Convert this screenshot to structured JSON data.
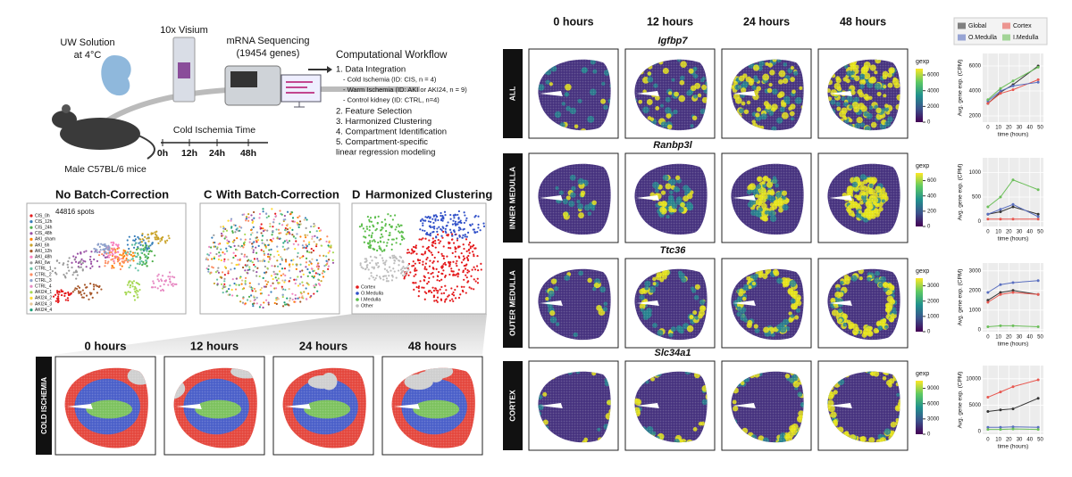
{
  "workflow": {
    "uw": [
      "UW Solution",
      "at 4°C"
    ],
    "visium": "10x Visium",
    "seq": [
      "mRNA Sequencing",
      "(19454 genes)"
    ],
    "timeline_title": "Cold Ischemia Time",
    "times": [
      "0h",
      "12h",
      "24h",
      "48h"
    ],
    "mice": "Male C57BL/6 mice",
    "comp_title": "Computational Workflow",
    "steps": [
      "1. Data Integration",
      "- Cold Ischemia (ID: CIS, n = 4)",
      "- Warm Ischemia (ID: AKI or AKI24, n = 9)",
      "- Control kidney (ID: CTRL, n=4)",
      "2. Feature Selection",
      "3. Harmonized Clustering",
      "4. Compartment Identification",
      "5. Compartment-specific",
      "linear regression modeling"
    ]
  },
  "panels": {
    "b": {
      "title": "No Batch-Correction",
      "spots": "44816 spots",
      "legend": [
        "CIS_0h",
        "CIS_12h",
        "CIS_24h",
        "CIS_48h",
        "AKI_sham",
        "AKI_6h",
        "AKI_12h",
        "AKI_48h",
        "AKI_6w",
        "CTRL_1",
        "CTRL_2",
        "CTRL_3",
        "CTRL_4",
        "AKI24_1",
        "AKI24_2",
        "AKI24_3",
        "AKI24_4"
      ]
    },
    "c": {
      "letter": "C",
      "title": "With Batch-Correction"
    },
    "d": {
      "letter": "D",
      "title": "Harmonized Clustering",
      "legend": [
        "Cortex",
        "O.Medulla",
        "I.Medulla",
        "Other"
      ]
    }
  },
  "cold_ischemia": {
    "row_label": "COLD ISCHEMIA",
    "hours": [
      "0 hours",
      "12 hours",
      "24 hours",
      "48 hours"
    ]
  },
  "spatial": {
    "hours": [
      "0 hours",
      "12 hours",
      "24 hours",
      "48 hours"
    ],
    "rows": [
      {
        "label": "ALL",
        "gene": "Igfbp7",
        "scale_title": "gexp",
        "scale_lim": [
          0,
          6800
        ],
        "scale_ticks": [
          0,
          2000,
          4000,
          6000
        ]
      },
      {
        "label": "INNER MEDULLA",
        "gene": "Ranbp3l",
        "scale_title": "gexp",
        "scale_lim": [
          0,
          700
        ],
        "scale_ticks": [
          0,
          200,
          400,
          600
        ]
      },
      {
        "label": "OUTER MEDULLA",
        "gene": "Ttc36",
        "scale_title": "gexp",
        "scale_lim": [
          0,
          3500
        ],
        "scale_ticks": [
          0,
          1000,
          2000,
          3000
        ]
      },
      {
        "label": "CORTEX",
        "gene": "Slc34a1",
        "scale_title": "gexp",
        "scale_lim": [
          0,
          10500
        ],
        "scale_ticks": [
          0,
          3000,
          6000,
          9000
        ]
      }
    ]
  },
  "chart_data": [
    {
      "type": "line",
      "ylabel": "Avg. gene exp. (CPM)",
      "xlabel": "time (hours)",
      "x": [
        0,
        12,
        24,
        48
      ],
      "xlim": [
        -5,
        53
      ],
      "xticks": [
        0,
        10,
        20,
        30,
        40,
        50
      ],
      "ylim": [
        1500,
        7000
      ],
      "yticks": [
        2000,
        4000,
        6000
      ],
      "series": [
        {
          "name": "Global",
          "color": "#333333",
          "values": [
            3000,
            3900,
            4500,
            6000
          ]
        },
        {
          "name": "Cortex",
          "color": "#e8574f",
          "values": [
            3000,
            3800,
            4100,
            4900
          ]
        },
        {
          "name": "O.Medulla",
          "color": "#5a6fc0",
          "values": [
            3200,
            4000,
            4400,
            4700
          ]
        },
        {
          "name": "I.Medulla",
          "color": "#6cbf5a",
          "values": [
            3300,
            4200,
            4800,
            5900
          ]
        }
      ]
    },
    {
      "type": "line",
      "ylabel": "Avg. gene exp. (CPM)",
      "xlabel": "time (hours)",
      "x": [
        0,
        12,
        24,
        48
      ],
      "xlim": [
        -5,
        53
      ],
      "xticks": [
        0,
        10,
        20,
        30,
        40,
        50
      ],
      "ylim": [
        -100,
        1300
      ],
      "yticks": [
        0,
        500,
        1000
      ],
      "series": [
        {
          "name": "Global",
          "color": "#333333",
          "values": [
            150,
            200,
            300,
            150
          ]
        },
        {
          "name": "Cortex",
          "color": "#e8574f",
          "values": [
            50,
            50,
            50,
            50
          ]
        },
        {
          "name": "O.Medulla",
          "color": "#5a6fc0",
          "values": [
            150,
            250,
            350,
            100
          ]
        },
        {
          "name": "I.Medulla",
          "color": "#6cbf5a",
          "values": [
            300,
            500,
            850,
            650
          ]
        }
      ]
    },
    {
      "type": "line",
      "ylabel": "Avg. gene exp. (CPM)",
      "xlabel": "time (hours)",
      "x": [
        0,
        12,
        24,
        48
      ],
      "xlim": [
        -5,
        53
      ],
      "xticks": [
        0,
        10,
        20,
        30,
        40,
        50
      ],
      "ylim": [
        -100,
        3400
      ],
      "yticks": [
        0,
        1000,
        2000,
        3000
      ],
      "series": [
        {
          "name": "Global",
          "color": "#333333",
          "values": [
            1500,
            1900,
            2000,
            1800
          ]
        },
        {
          "name": "Cortex",
          "color": "#e8574f",
          "values": [
            1400,
            1800,
            1900,
            1800
          ]
        },
        {
          "name": "O.Medulla",
          "color": "#5a6fc0",
          "values": [
            1900,
            2300,
            2400,
            2500
          ]
        },
        {
          "name": "I.Medulla",
          "color": "#6cbf5a",
          "values": [
            150,
            200,
            200,
            150
          ]
        }
      ]
    },
    {
      "type": "line",
      "ylabel": "Avg. gene exp. (CPM)",
      "xlabel": "time (hours)",
      "x": [
        0,
        12,
        24,
        48
      ],
      "xlim": [
        -5,
        53
      ],
      "xticks": [
        0,
        10,
        20,
        30,
        40,
        50
      ],
      "ylim": [
        -500,
        12500
      ],
      "yticks": [
        0,
        5000,
        10000
      ],
      "series": [
        {
          "name": "Global",
          "color": "#333333",
          "values": [
            3800,
            4100,
            4300,
            6300
          ]
        },
        {
          "name": "Cortex",
          "color": "#e8574f",
          "values": [
            6500,
            7500,
            8500,
            9800
          ]
        },
        {
          "name": "O.Medulla",
          "color": "#5a6fc0",
          "values": [
            800,
            800,
            900,
            800
          ]
        },
        {
          "name": "I.Medulla",
          "color": "#6cbf5a",
          "values": [
            400,
            400,
            500,
            400
          ]
        }
      ]
    }
  ]
}
